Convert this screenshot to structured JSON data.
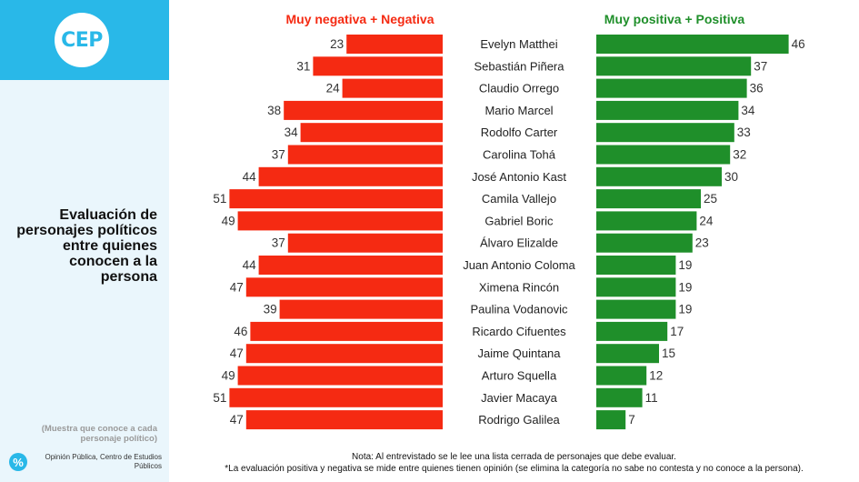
{
  "logo": {
    "text": "CEP"
  },
  "sidebar": {
    "title": "Evaluación de personajes políticos entre quienes conocen a la persona",
    "sample_note": "(Muestra que conoce a cada personaje político)",
    "source_icon": "%",
    "source": "Opinión Pública, Centro de Estudios Públicos"
  },
  "chart_data": {
    "type": "bar",
    "negative_header": "Muy negativa + Negativa",
    "positive_header": "Muy positiva + Positiva",
    "categories": [
      "Evelyn Matthei",
      "Sebastián Piñera",
      "Claudio Orrego",
      "Mario Marcel",
      "Rodolfo Carter",
      "Carolina Tohá",
      "José Antonio Kast",
      "Camila Vallejo",
      "Gabriel Boric",
      "Álvaro Elizalde",
      "Juan Antonio Coloma",
      "Ximena Rincón",
      "Paulina Vodanovic",
      "Ricardo Cifuentes",
      "Jaime Quintana",
      "Arturo Squella",
      "Javier Macaya",
      "Rodrigo Galilea"
    ],
    "series": [
      {
        "name": "Muy negativa + Negativa",
        "color": "#f52a12",
        "values": [
          23,
          31,
          24,
          38,
          34,
          37,
          44,
          51,
          49,
          37,
          44,
          47,
          39,
          46,
          47,
          49,
          51,
          47
        ]
      },
      {
        "name": "Muy positiva + Positiva",
        "color": "#1f8f2a",
        "values": [
          46,
          37,
          36,
          34,
          33,
          32,
          30,
          25,
          24,
          23,
          19,
          19,
          19,
          17,
          15,
          12,
          11,
          7
        ]
      }
    ]
  },
  "notes": {
    "line1": "Nota: Al entrevistado se le lee una lista cerrada de personajes que debe evaluar.",
    "line2": "*La evaluación positiva y negativa se mide entre quienes tienen opinión (se elimina la categoría no sabe no contesta y no conoce a la persona)."
  }
}
